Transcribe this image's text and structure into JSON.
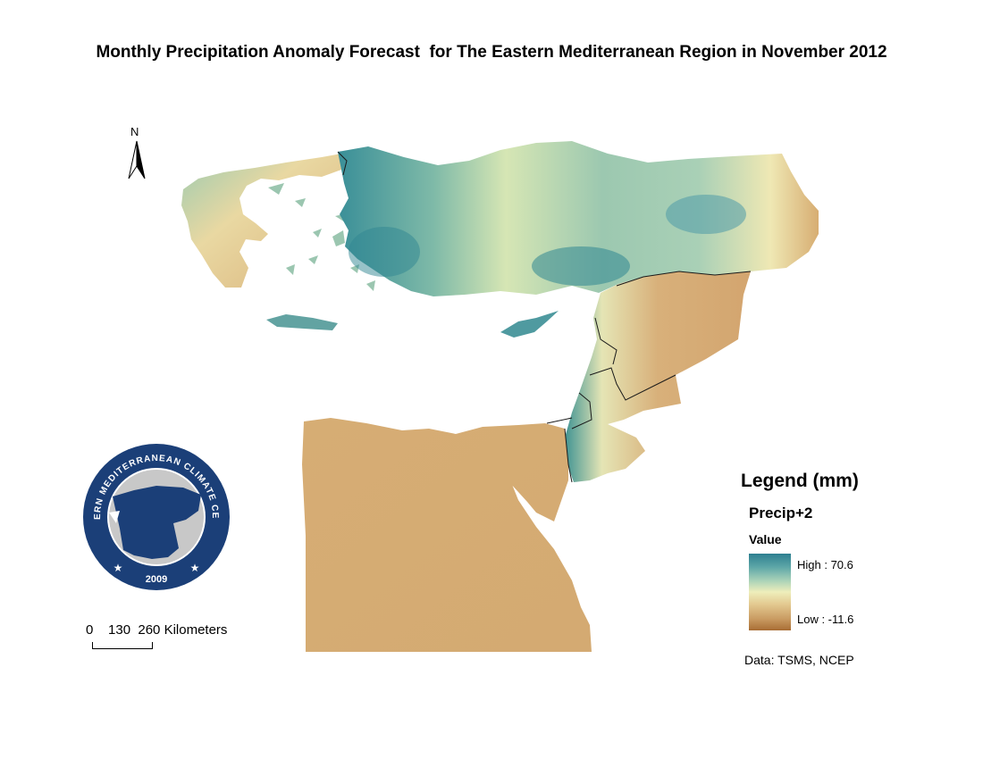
{
  "title": "Monthly Precipitation Anomaly Forecast  for The Eastern Mediterranean Region in November 2012",
  "north_arrow": {
    "letter": "N",
    "icon": "north-arrow-icon"
  },
  "logo": {
    "text": "EASTERN MEDITERRANEAN CLIMATE CENTRE",
    "year": "2009",
    "colors": {
      "ring": "#1b3f78",
      "map_land": "#1b3f78",
      "sea": "#c8c8c8"
    }
  },
  "scale_bar": {
    "label": "0    130  260 Kilometers"
  },
  "legend": {
    "title": "Legend (mm)",
    "layer": "Precip+2",
    "field": "Value",
    "high_label": "High : 70.6",
    "low_label": "Low : -11.6",
    "high_value": 70.6,
    "low_value": -11.6,
    "colors": {
      "high": "#2d7f90",
      "mid": "#eeeebb",
      "low": "#a86d34"
    }
  },
  "source": "Data:  TSMS, NCEP"
}
